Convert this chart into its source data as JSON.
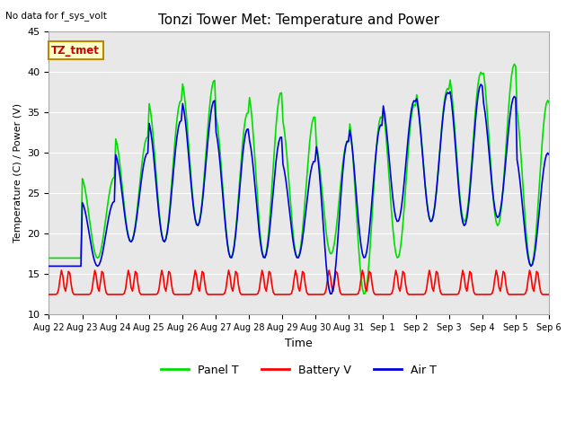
{
  "title": "Tonzi Tower Met: Temperature and Power",
  "no_data_text": "No data for f_sys_volt",
  "label_box_text": "TZ_tmet",
  "xlabel": "Time",
  "ylabel": "Temperature (C) / Power (V)",
  "ylim": [
    10,
    45
  ],
  "yticks": [
    10,
    15,
    20,
    25,
    30,
    35,
    40,
    45
  ],
  "x_tick_labels": [
    "Aug 22",
    "Aug 23",
    "Aug 24",
    "Aug 25",
    "Aug 26",
    "Aug 27",
    "Aug 28",
    "Aug 29",
    "Aug 30",
    "Aug 31",
    "Sep 1",
    "Sep 2",
    "Sep 3",
    "Sep 4",
    "Sep 5",
    "Sep 6"
  ],
  "line_colors": {
    "panel_t": "#00DD00",
    "battery_v": "#FF0000",
    "air_t": "#0000DD"
  },
  "legend_labels": [
    "Panel T",
    "Battery V",
    "Air T"
  ],
  "background_color": "#FFFFFF",
  "plot_bg_color": "#E8E8E8",
  "grid_color": "#FFFFFF",
  "battery_base": 12.5,
  "battery_peak": 15.5,
  "n_days": 15,
  "panel_peaks": [
    17.0,
    27.0,
    32.0,
    36.5,
    39.0,
    35.0,
    37.5,
    34.5,
    31.5,
    34.5,
    36.0,
    38.0,
    40.0,
    41.0,
    36.5,
    33.5
  ],
  "panel_troughs": [
    17.0,
    17.0,
    19.0,
    19.0,
    21.0,
    17.0,
    17.0,
    17.0,
    17.5,
    12.5,
    17.0,
    21.5,
    21.5,
    21.0,
    16.0,
    19.5
  ],
  "air_peaks": [
    16.0,
    24.0,
    30.0,
    34.0,
    36.5,
    33.0,
    32.0,
    29.0,
    31.5,
    33.5,
    36.5,
    37.5,
    38.5,
    37.0,
    30.0,
    30.0
  ],
  "air_troughs": [
    16.0,
    16.0,
    19.0,
    19.0,
    21.0,
    17.0,
    17.0,
    17.0,
    12.5,
    17.0,
    21.5,
    21.5,
    21.0,
    22.0,
    16.0,
    19.5
  ]
}
